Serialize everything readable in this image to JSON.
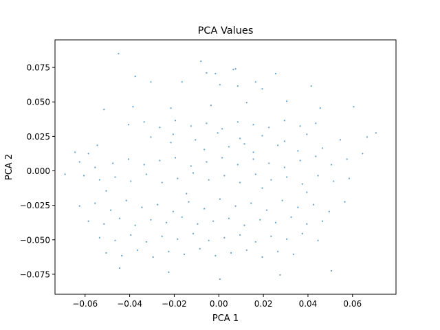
{
  "chart_data": {
    "type": "scatter",
    "title": "PCA Values",
    "xlabel": "PCA 1",
    "ylabel": "PCA 2",
    "xlim": [
      -0.0735,
      0.0795
    ],
    "ylim": [
      -0.0895,
      0.095
    ],
    "x_ticks": [
      -0.06,
      -0.04,
      -0.02,
      0.0,
      0.02,
      0.04,
      0.06
    ],
    "x_tick_labels": [
      "−0.06",
      "−0.04",
      "−0.02",
      "0.00",
      "0.02",
      "0.04",
      "0.06"
    ],
    "y_ticks": [
      -0.075,
      -0.05,
      -0.025,
      0.0,
      0.025,
      0.05,
      0.075
    ],
    "y_tick_labels": [
      "−0.075",
      "−0.050",
      "−0.025",
      "0.000",
      "0.025",
      "0.050",
      "0.075"
    ],
    "grid": false,
    "marker_color": "#1f77b4",
    "series": [
      {
        "x": [
          -0.045,
          -0.008,
          -0.0055,
          0.0075,
          0.0065,
          -0.0015,
          0.0255,
          -0.0375,
          -0.0305,
          -0.0165,
          0.0165,
          0.0085,
          0.0005,
          0.0195,
          0.0415,
          -0.0515,
          -0.0385,
          -0.0215,
          -0.0035,
          0.0125,
          0.0305,
          0.0455,
          0.0605,
          0.0705,
          -0.0585,
          -0.0645,
          -0.0625,
          -0.0555,
          -0.0475,
          -0.0405,
          -0.0335,
          -0.0265,
          -0.0195,
          -0.0125,
          -0.0055,
          0.0015,
          0.0085,
          0.0155,
          0.0225,
          0.0295,
          0.0365,
          0.0435,
          0.0505,
          0.0575,
          0.0645,
          -0.069,
          -0.0605,
          -0.0535,
          -0.0465,
          -0.0395,
          -0.0325,
          -0.0255,
          -0.0185,
          -0.0115,
          -0.0045,
          0.0025,
          0.0095,
          0.0165,
          0.0235,
          0.0305,
          0.0375,
          0.0445,
          0.0515,
          0.0585,
          -0.0625,
          -0.0555,
          -0.0485,
          -0.0415,
          -0.0345,
          -0.0275,
          -0.0205,
          -0.0135,
          -0.0065,
          0.0005,
          0.0075,
          0.0145,
          0.0215,
          0.0285,
          0.0355,
          0.0425,
          0.0495,
          0.0565,
          -0.0585,
          -0.0515,
          -0.0445,
          -0.0375,
          -0.0305,
          -0.0235,
          -0.0165,
          -0.0095,
          -0.0025,
          0.0045,
          0.0115,
          0.0185,
          0.0255,
          0.0325,
          0.0395,
          0.0465,
          -0.0535,
          -0.0465,
          -0.0395,
          -0.0325,
          -0.0255,
          -0.0185,
          -0.0115,
          -0.0045,
          0.0025,
          0.0095,
          0.0165,
          0.0235,
          0.0305,
          0.0375,
          0.0445,
          -0.0505,
          -0.0435,
          -0.0365,
          -0.0295,
          -0.0225,
          -0.0155,
          -0.0085,
          -0.0015,
          0.0055,
          0.0125,
          0.0195,
          0.0265,
          0.0335,
          -0.0405,
          -0.0335,
          -0.0265,
          -0.0195,
          -0.0125,
          -0.0055,
          0.0015,
          0.0085,
          0.0155,
          0.0225,
          0.0295,
          0.0365,
          0.0435,
          -0.0305,
          -0.0205,
          -0.0105,
          -0.0005,
          0.0095,
          0.0195,
          0.0295,
          0.0395,
          -0.0065,
          0.0045,
          0.0155,
          0.0265,
          0.0355,
          0.0465,
          -0.0545,
          -0.0215,
          0.0115,
          0.0545,
          0.0665,
          -0.0505,
          -0.0145,
          0.0195,
          0.0395,
          -0.0445,
          -0.0225,
          0.0005,
          0.0275,
          0.0505
        ],
        "y": [
          0.085,
          0.0795,
          0.071,
          0.074,
          0.0735,
          0.0705,
          0.0705,
          0.0685,
          0.0645,
          0.0645,
          0.0645,
          0.0615,
          0.0625,
          0.0595,
          0.0615,
          0.0445,
          0.0465,
          0.0455,
          0.0475,
          0.0495,
          0.0505,
          0.0455,
          0.0465,
          0.0275,
          0.0125,
          0.0135,
          0.0065,
          0.0025,
          0.0055,
          0.0085,
          0.0045,
          0.0075,
          0.0095,
          0.0035,
          0.0065,
          0.0095,
          0.0045,
          0.0085,
          0.0055,
          0.0025,
          0.0075,
          0.0105,
          0.0045,
          0.0085,
          0.0125,
          -0.0025,
          -0.0035,
          -0.0065,
          -0.0045,
          -0.0075,
          -0.0025,
          -0.0085,
          -0.0055,
          -0.0015,
          -0.0065,
          -0.0035,
          -0.0085,
          -0.0025,
          -0.0065,
          -0.0045,
          -0.0095,
          -0.0035,
          -0.0075,
          -0.0055,
          -0.0255,
          -0.0235,
          -0.0285,
          -0.0215,
          -0.0265,
          -0.0245,
          -0.0295,
          -0.0225,
          -0.0275,
          -0.0205,
          -0.0255,
          -0.0235,
          -0.0285,
          -0.0215,
          -0.0265,
          -0.0245,
          -0.0295,
          -0.0225,
          -0.0365,
          -0.0385,
          -0.0345,
          -0.0395,
          -0.0355,
          -0.0375,
          -0.0335,
          -0.0385,
          -0.0365,
          -0.0345,
          -0.0395,
          -0.0355,
          -0.0375,
          -0.0335,
          -0.0385,
          -0.0365,
          -0.0485,
          -0.0505,
          -0.0465,
          -0.0515,
          -0.0475,
          -0.0495,
          -0.0455,
          -0.0505,
          -0.0485,
          -0.0465,
          -0.0515,
          -0.0475,
          -0.0495,
          -0.0455,
          -0.0505,
          -0.0595,
          -0.0615,
          -0.0575,
          -0.0625,
          -0.0585,
          -0.0605,
          -0.0565,
          -0.0615,
          -0.0595,
          -0.0575,
          -0.0625,
          -0.0585,
          -0.0605,
          0.0335,
          0.0355,
          0.0315,
          0.0365,
          0.0325,
          0.0345,
          0.0305,
          0.0355,
          0.0335,
          0.0315,
          0.0365,
          0.0325,
          0.0345,
          0.0245,
          0.0265,
          0.0225,
          0.0275,
          0.0235,
          0.0255,
          0.0215,
          0.0265,
          0.0155,
          0.0175,
          0.0135,
          0.0185,
          0.0145,
          0.0165,
          0.0185,
          0.0205,
          0.0195,
          0.0225,
          0.0245,
          -0.0145,
          -0.0165,
          -0.0125,
          -0.0155,
          -0.0705,
          -0.0735,
          -0.0785,
          -0.0755,
          -0.0725
        ]
      }
    ]
  }
}
